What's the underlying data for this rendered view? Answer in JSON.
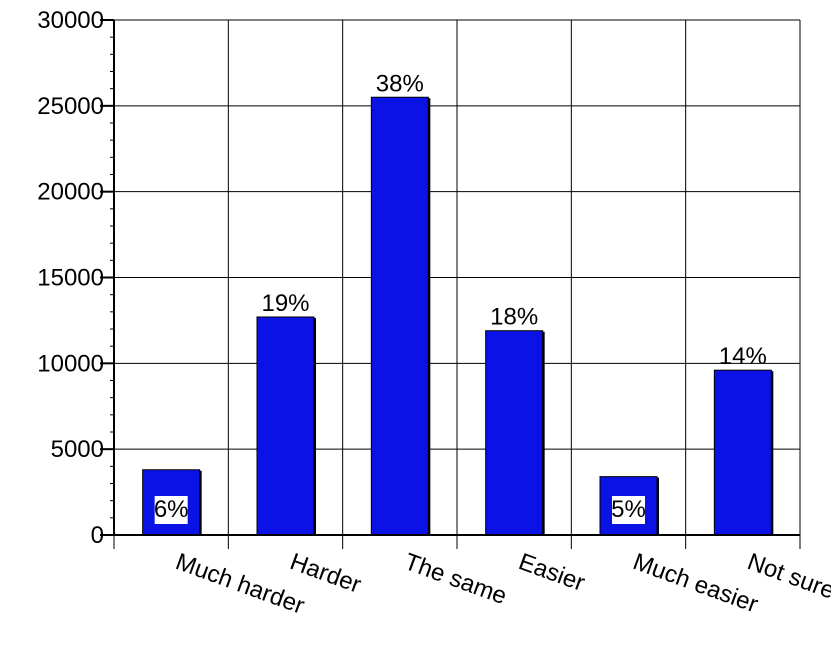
{
  "chart_data": {
    "type": "bar",
    "categories": [
      "Much harder",
      "Harder",
      "The same",
      "Easier",
      "Much easier",
      "Not sure"
    ],
    "values": [
      3800,
      12700,
      25500,
      11900,
      3400,
      9600
    ],
    "data_labels": [
      "6%",
      "19%",
      "38%",
      "18%",
      "5%",
      "14%"
    ],
    "data_label_position": [
      "inside",
      "above",
      "above",
      "above",
      "inside",
      "above"
    ],
    "ylim": [
      0,
      30000
    ],
    "yticks": [
      0,
      5000,
      10000,
      15000,
      20000,
      25000,
      30000
    ],
    "title": "",
    "xlabel": "",
    "ylabel": "",
    "grid": true,
    "legend": "none",
    "colors": {
      "bar": "#0b12e6",
      "bar_shadow": "#000000",
      "grid": "#000000",
      "label_box": "#ffffff"
    }
  }
}
